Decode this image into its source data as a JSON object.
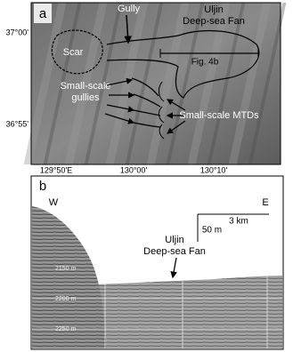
{
  "panel_a": {
    "label": "a",
    "scar": "Scar",
    "gully": "Gully",
    "fan": [
      "Uljin",
      "Deep-sea Fan"
    ],
    "fig_ref": "Fig. 4b",
    "gullies": [
      "Small-scale",
      "gullies"
    ],
    "mtds": "Small-scale MTDs",
    "lat_ticks": [
      "37°00'",
      "36°55'"
    ],
    "lon_ticks": [
      "129°50'E",
      "130°00'",
      "130°10'"
    ]
  },
  "panel_b": {
    "label": "b",
    "west": "W",
    "east": "E",
    "scale_h": "3 km",
    "scale_v": "50 m",
    "depths": [
      "2150 m",
      "2200 m",
      "2250 m"
    ],
    "fan": [
      "Uljin",
      "Deep-sea Fan"
    ]
  }
}
